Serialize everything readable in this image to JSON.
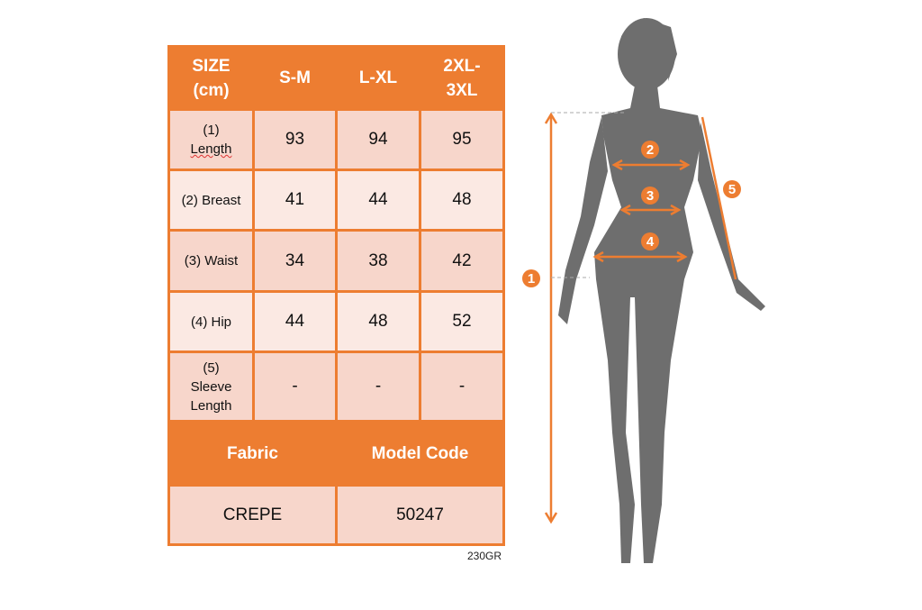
{
  "table": {
    "header": [
      "SIZE (cm)",
      "S-M",
      "L-XL",
      "2XL-3XL"
    ],
    "header_lines": [
      [
        "SIZE",
        "(cm)"
      ],
      [
        "S-M"
      ],
      [
        "L-XL"
      ],
      [
        "2XL-",
        "3XL"
      ]
    ],
    "rows": [
      {
        "label_lines": [
          "(1)",
          "Length"
        ],
        "values": [
          "93",
          "94",
          "95"
        ]
      },
      {
        "label_lines": [
          "(2) Breast"
        ],
        "values": [
          "41",
          "44",
          "48"
        ]
      },
      {
        "label_lines": [
          "(3) Waist"
        ],
        "values": [
          "34",
          "38",
          "42"
        ]
      },
      {
        "label_lines": [
          "(4) Hip"
        ],
        "values": [
          "44",
          "48",
          "52"
        ]
      },
      {
        "label_lines": [
          "(5)",
          "Sleeve",
          "Length"
        ],
        "values": [
          "-",
          "-",
          "-"
        ]
      }
    ],
    "fabric_label": "Fabric",
    "model_code_label": "Model Code",
    "fabric_value": "CREPE",
    "model_code_value": "50247"
  },
  "code_note": "230GR",
  "figure": {
    "markers": [
      "1",
      "2",
      "3",
      "4",
      "5"
    ]
  },
  "colors": {
    "accent": "#ED7D31",
    "cell_dark": "#F7D6CB",
    "cell_light": "#FBE9E3",
    "silhouette": "#6E6E6E"
  }
}
